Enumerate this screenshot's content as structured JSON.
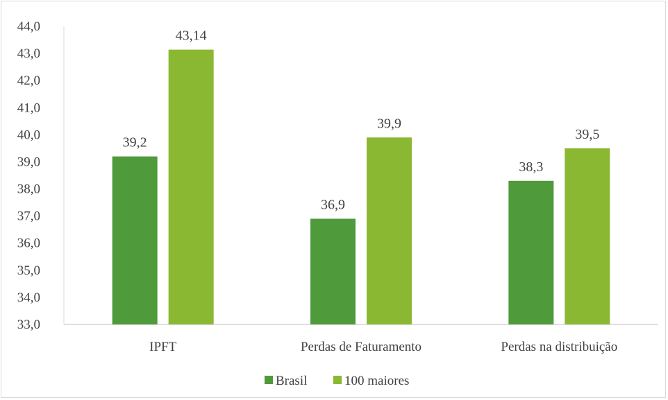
{
  "chart_data": {
    "type": "bar",
    "categories": [
      "IPFT",
      "Perdas de Faturamento",
      "Perdas na distribuição"
    ],
    "series": [
      {
        "name": "Brasil",
        "values": [
          39.2,
          36.9,
          38.3
        ],
        "labels": [
          "39,2",
          "36,9",
          "38,3"
        ],
        "color": "#4f9a3a"
      },
      {
        "name": "100 maiores",
        "values": [
          43.14,
          39.9,
          39.5
        ],
        "labels": [
          "43,14",
          "39,9",
          "39,5"
        ],
        "color": "#8bb832"
      }
    ],
    "ylim": [
      33.0,
      44.0
    ],
    "yticks": [
      "33,0",
      "34,0",
      "35,0",
      "36,0",
      "37,0",
      "38,0",
      "39,0",
      "40,0",
      "41,0",
      "42,0",
      "43,0",
      "44,0"
    ],
    "grid": false,
    "legend": "bottom"
  }
}
